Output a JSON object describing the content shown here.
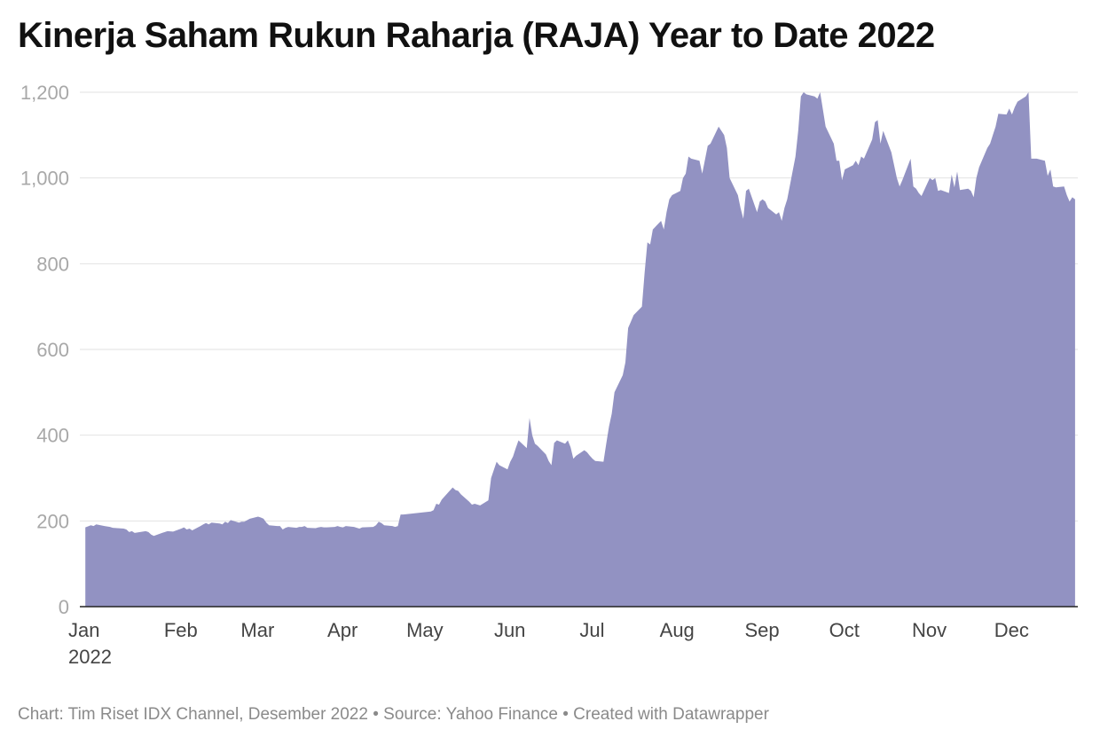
{
  "chart_data": {
    "type": "area",
    "title": "Kinerja Saham Rukun Raharja (RAJA) Year to Date 2022",
    "footer": "Chart: Tim Riset IDX Channel, Desember 2022 • Source: Yahoo Finance • Created with Datawrapper",
    "xlabel": "",
    "ylabel": "",
    "ylim": [
      0,
      1200
    ],
    "y_ticks": [
      0,
      200,
      400,
      600,
      800,
      1000,
      1200
    ],
    "y_tick_labels": [
      "0",
      "200",
      "400",
      "600",
      "800",
      "1,000",
      "1,200"
    ],
    "x_ticks": [
      {
        "date": "2022-01-01",
        "label": "Jan",
        "sublabel": "2022"
      },
      {
        "date": "2022-02-01",
        "label": "Feb",
        "sublabel": ""
      },
      {
        "date": "2022-03-01",
        "label": "Mar",
        "sublabel": ""
      },
      {
        "date": "2022-04-01",
        "label": "Apr",
        "sublabel": ""
      },
      {
        "date": "2022-05-01",
        "label": "May",
        "sublabel": ""
      },
      {
        "date": "2022-06-01",
        "label": "Jun",
        "sublabel": ""
      },
      {
        "date": "2022-07-01",
        "label": "Jul",
        "sublabel": ""
      },
      {
        "date": "2022-08-01",
        "label": "Aug",
        "sublabel": ""
      },
      {
        "date": "2022-09-01",
        "label": "Sep",
        "sublabel": ""
      },
      {
        "date": "2022-10-01",
        "label": "Oct",
        "sublabel": ""
      },
      {
        "date": "2022-11-01",
        "label": "Nov",
        "sublabel": ""
      },
      {
        "date": "2022-12-01",
        "label": "Dec",
        "sublabel": ""
      }
    ],
    "x_range": [
      "2022-01-01",
      "2022-12-31"
    ],
    "grid": true,
    "series": [
      {
        "color": "#9292c2",
        "points": [
          [
            "2022-01-03",
            185
          ],
          [
            "2022-01-05",
            190
          ],
          [
            "2022-01-06",
            188
          ],
          [
            "2022-01-07",
            192
          ],
          [
            "2022-01-10",
            188
          ],
          [
            "2022-01-12",
            186
          ],
          [
            "2022-01-13",
            184
          ],
          [
            "2022-01-17",
            182
          ],
          [
            "2022-01-18",
            180
          ],
          [
            "2022-01-19",
            174
          ],
          [
            "2022-01-20",
            176
          ],
          [
            "2022-01-21",
            172
          ],
          [
            "2022-01-24",
            175
          ],
          [
            "2022-01-25",
            176
          ],
          [
            "2022-01-26",
            174
          ],
          [
            "2022-01-27",
            168
          ],
          [
            "2022-01-28",
            165
          ],
          [
            "2022-01-31",
            172
          ],
          [
            "2022-02-02",
            176
          ],
          [
            "2022-02-04",
            175
          ],
          [
            "2022-02-07",
            182
          ],
          [
            "2022-02-08",
            185
          ],
          [
            "2022-02-09",
            180
          ],
          [
            "2022-02-10",
            182
          ],
          [
            "2022-02-11",
            178
          ],
          [
            "2022-02-14",
            188
          ],
          [
            "2022-02-15",
            192
          ],
          [
            "2022-02-16",
            195
          ],
          [
            "2022-02-17",
            192
          ],
          [
            "2022-02-18",
            196
          ],
          [
            "2022-02-21",
            194
          ],
          [
            "2022-02-22",
            192
          ],
          [
            "2022-02-23",
            198
          ],
          [
            "2022-02-24",
            195
          ],
          [
            "2022-02-25",
            202
          ],
          [
            "2022-02-28",
            196
          ],
          [
            "2022-03-01",
            198
          ],
          [
            "2022-03-02",
            198
          ],
          [
            "2022-03-04",
            205
          ],
          [
            "2022-03-07",
            210
          ],
          [
            "2022-03-08",
            208
          ],
          [
            "2022-03-09",
            205
          ],
          [
            "2022-03-10",
            196
          ],
          [
            "2022-03-11",
            190
          ],
          [
            "2022-03-14",
            188
          ],
          [
            "2022-03-15",
            188
          ],
          [
            "2022-03-16",
            180
          ],
          [
            "2022-03-17",
            184
          ],
          [
            "2022-03-18",
            186
          ],
          [
            "2022-03-21",
            184
          ],
          [
            "2022-03-22",
            186
          ],
          [
            "2022-03-23",
            186
          ],
          [
            "2022-03-24",
            188
          ],
          [
            "2022-03-25",
            184
          ],
          [
            "2022-03-28",
            183
          ],
          [
            "2022-03-29",
            185
          ],
          [
            "2022-03-30",
            186
          ],
          [
            "2022-03-31",
            185
          ],
          [
            "2022-04-01",
            185
          ],
          [
            "2022-04-04",
            186
          ],
          [
            "2022-04-05",
            188
          ],
          [
            "2022-04-06",
            186
          ],
          [
            "2022-04-07",
            185
          ],
          [
            "2022-04-08",
            188
          ],
          [
            "2022-04-11",
            186
          ],
          [
            "2022-04-12",
            184
          ],
          [
            "2022-04-13",
            182
          ],
          [
            "2022-04-14",
            185
          ],
          [
            "2022-04-18",
            186
          ],
          [
            "2022-04-19",
            190
          ],
          [
            "2022-04-20",
            198
          ],
          [
            "2022-04-21",
            195
          ],
          [
            "2022-04-22",
            190
          ],
          [
            "2022-04-25",
            188
          ],
          [
            "2022-04-26",
            186
          ],
          [
            "2022-04-27",
            188
          ],
          [
            "2022-04-28",
            215
          ],
          [
            "2022-04-29",
            215
          ],
          [
            "2022-05-09",
            222
          ],
          [
            "2022-05-10",
            225
          ],
          [
            "2022-05-11",
            240
          ],
          [
            "2022-05-12",
            238
          ],
          [
            "2022-05-13",
            250
          ],
          [
            "2022-05-17",
            278
          ],
          [
            "2022-05-18",
            272
          ],
          [
            "2022-05-19",
            270
          ],
          [
            "2022-05-20",
            262
          ],
          [
            "2022-05-23",
            245
          ],
          [
            "2022-05-24",
            238
          ],
          [
            "2022-05-25",
            240
          ],
          [
            "2022-05-27",
            236
          ],
          [
            "2022-05-30",
            248
          ],
          [
            "2022-05-31",
            300
          ],
          [
            "2022-06-02",
            338
          ],
          [
            "2022-06-03",
            330
          ],
          [
            "2022-06-06",
            320
          ],
          [
            "2022-06-07",
            338
          ],
          [
            "2022-06-08",
            350
          ],
          [
            "2022-06-09",
            370
          ],
          [
            "2022-06-10",
            388
          ],
          [
            "2022-06-13",
            370
          ],
          [
            "2022-06-14",
            440
          ],
          [
            "2022-06-15",
            400
          ],
          [
            "2022-06-16",
            380
          ],
          [
            "2022-06-17",
            375
          ],
          [
            "2022-06-20",
            355
          ],
          [
            "2022-06-21",
            340
          ],
          [
            "2022-06-22",
            330
          ],
          [
            "2022-06-23",
            382
          ],
          [
            "2022-06-24",
            388
          ],
          [
            "2022-06-27",
            380
          ],
          [
            "2022-06-28",
            388
          ],
          [
            "2022-06-29",
            372
          ],
          [
            "2022-06-30",
            345
          ],
          [
            "2022-07-01",
            352
          ],
          [
            "2022-07-04",
            365
          ],
          [
            "2022-07-05",
            360
          ],
          [
            "2022-07-06",
            352
          ],
          [
            "2022-07-07",
            345
          ],
          [
            "2022-07-08",
            340
          ],
          [
            "2022-07-11",
            338
          ],
          [
            "2022-07-12",
            380
          ],
          [
            "2022-07-13",
            420
          ],
          [
            "2022-07-14",
            450
          ],
          [
            "2022-07-15",
            500
          ],
          [
            "2022-07-18",
            540
          ],
          [
            "2022-07-19",
            570
          ],
          [
            "2022-07-20",
            650
          ],
          [
            "2022-07-21",
            665
          ],
          [
            "2022-07-22",
            680
          ],
          [
            "2022-07-25",
            700
          ],
          [
            "2022-07-26",
            780
          ],
          [
            "2022-07-27",
            850
          ],
          [
            "2022-07-28",
            845
          ],
          [
            "2022-07-29",
            880
          ],
          [
            "2022-08-01",
            900
          ],
          [
            "2022-08-02",
            880
          ],
          [
            "2022-08-03",
            920
          ],
          [
            "2022-08-04",
            950
          ],
          [
            "2022-08-05",
            960
          ],
          [
            "2022-08-08",
            970
          ],
          [
            "2022-08-09",
            1000
          ],
          [
            "2022-08-10",
            1010
          ],
          [
            "2022-08-11",
            1050
          ],
          [
            "2022-08-12",
            1045
          ],
          [
            "2022-08-15",
            1040
          ],
          [
            "2022-08-16",
            1010
          ],
          [
            "2022-08-18",
            1075
          ],
          [
            "2022-08-19",
            1080
          ],
          [
            "2022-08-22",
            1120
          ],
          [
            "2022-08-23",
            1110
          ],
          [
            "2022-08-24",
            1100
          ],
          [
            "2022-08-25",
            1070
          ],
          [
            "2022-08-26",
            1000
          ],
          [
            "2022-08-29",
            960
          ],
          [
            "2022-08-30",
            930
          ],
          [
            "2022-08-31",
            905
          ],
          [
            "2022-09-01",
            970
          ],
          [
            "2022-09-02",
            975
          ],
          [
            "2022-09-05",
            920
          ],
          [
            "2022-09-06",
            945
          ],
          [
            "2022-09-07",
            950
          ],
          [
            "2022-09-08",
            945
          ],
          [
            "2022-09-09",
            930
          ],
          [
            "2022-09-12",
            915
          ],
          [
            "2022-09-13",
            920
          ],
          [
            "2022-09-14",
            900
          ],
          [
            "2022-09-15",
            930
          ],
          [
            "2022-09-16",
            950
          ],
          [
            "2022-09-19",
            1050
          ],
          [
            "2022-09-20",
            1110
          ],
          [
            "2022-09-21",
            1190
          ],
          [
            "2022-09-22",
            1200
          ],
          [
            "2022-09-23",
            1195
          ],
          [
            "2022-09-26",
            1190
          ],
          [
            "2022-09-27",
            1185
          ],
          [
            "2022-09-28",
            1200
          ],
          [
            "2022-09-29",
            1160
          ],
          [
            "2022-09-30",
            1120
          ],
          [
            "2022-10-03",
            1080
          ],
          [
            "2022-10-04",
            1040
          ],
          [
            "2022-10-05",
            1040
          ],
          [
            "2022-10-06",
            995
          ],
          [
            "2022-10-07",
            1020
          ],
          [
            "2022-10-10",
            1030
          ],
          [
            "2022-10-11",
            1040
          ],
          [
            "2022-10-12",
            1030
          ],
          [
            "2022-10-13",
            1050
          ],
          [
            "2022-10-14",
            1045
          ],
          [
            "2022-10-17",
            1090
          ],
          [
            "2022-10-18",
            1130
          ],
          [
            "2022-10-19",
            1135
          ],
          [
            "2022-10-20",
            1080
          ],
          [
            "2022-10-21",
            1110
          ],
          [
            "2022-10-24",
            1060
          ],
          [
            "2022-10-25",
            1030
          ],
          [
            "2022-10-26",
            1000
          ],
          [
            "2022-10-27",
            980
          ],
          [
            "2022-10-28",
            995
          ],
          [
            "2022-10-31",
            1045
          ],
          [
            "2022-11-01",
            980
          ],
          [
            "2022-11-02",
            975
          ],
          [
            "2022-11-03",
            965
          ],
          [
            "2022-11-04",
            958
          ],
          [
            "2022-11-07",
            1000
          ],
          [
            "2022-11-08",
            995
          ],
          [
            "2022-11-09",
            1000
          ],
          [
            "2022-11-10",
            970
          ],
          [
            "2022-11-11",
            972
          ],
          [
            "2022-11-14",
            965
          ],
          [
            "2022-11-15",
            1008
          ],
          [
            "2022-11-16",
            978
          ],
          [
            "2022-11-17",
            1015
          ],
          [
            "2022-11-18",
            972
          ],
          [
            "2022-11-21",
            975
          ],
          [
            "2022-11-22",
            970
          ],
          [
            "2022-11-23",
            955
          ],
          [
            "2022-11-24",
            1000
          ],
          [
            "2022-11-25",
            1025
          ],
          [
            "2022-11-28",
            1070
          ],
          [
            "2022-11-29",
            1080
          ],
          [
            "2022-11-30",
            1100
          ],
          [
            "2022-12-01",
            1120
          ],
          [
            "2022-12-02",
            1150
          ],
          [
            "2022-12-05",
            1148
          ],
          [
            "2022-12-06",
            1162
          ],
          [
            "2022-12-07",
            1148
          ],
          [
            "2022-12-08",
            1165
          ],
          [
            "2022-12-09",
            1178
          ],
          [
            "2022-12-12",
            1190
          ],
          [
            "2022-12-13",
            1200
          ],
          [
            "2022-12-14",
            1045
          ],
          [
            "2022-12-15",
            1045
          ],
          [
            "2022-12-16",
            1045
          ],
          [
            "2022-12-19",
            1040
          ],
          [
            "2022-12-20",
            1005
          ],
          [
            "2022-12-21",
            1020
          ],
          [
            "2022-12-22",
            980
          ],
          [
            "2022-12-23",
            978
          ],
          [
            "2022-12-26",
            980
          ],
          [
            "2022-12-27",
            960
          ],
          [
            "2022-12-28",
            945
          ],
          [
            "2022-12-29",
            955
          ],
          [
            "2022-12-30",
            950
          ]
        ]
      }
    ]
  }
}
